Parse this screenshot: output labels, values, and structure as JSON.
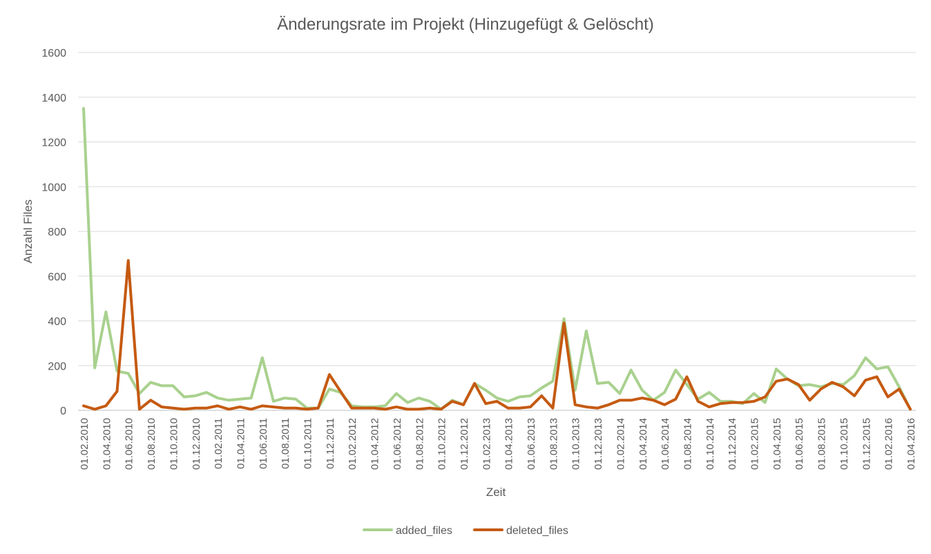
{
  "chart_data": {
    "type": "line",
    "title": "Änderungsrate im Projekt (Hinzugefügt & Gelöscht)",
    "xlabel": "Zeit",
    "ylabel": "Anzahl Files",
    "ylim": [
      0,
      1600
    ],
    "yticks": [
      "0",
      "200",
      "400",
      "600",
      "800",
      "1000",
      "1200",
      "1400",
      "1600"
    ],
    "grid": true,
    "legend_position": "bottom",
    "x": [
      "01.02.2010",
      "01.03.2010",
      "01.04.2010",
      "01.05.2010",
      "01.06.2010",
      "01.07.2010",
      "01.08.2010",
      "01.09.2010",
      "01.10.2010",
      "01.11.2010",
      "01.12.2010",
      "01.01.2011",
      "01.02.2011",
      "01.03.2011",
      "01.04.2011",
      "01.05.2011",
      "01.06.2011",
      "01.07.2011",
      "01.08.2011",
      "01.09.2011",
      "01.10.2011",
      "01.11.2011",
      "01.12.2011",
      "01.01.2012",
      "01.02.2012",
      "01.03.2012",
      "01.04.2012",
      "01.05.2012",
      "01.06.2012",
      "01.07.2012",
      "01.08.2012",
      "01.09.2012",
      "01.10.2012",
      "01.11.2012",
      "01.12.2012",
      "01.01.2013",
      "01.02.2013",
      "01.03.2013",
      "01.04.2013",
      "01.05.2013",
      "01.06.2013",
      "01.07.2013",
      "01.08.2013",
      "01.09.2013",
      "01.10.2013",
      "01.11.2013",
      "01.12.2013",
      "01.01.2014",
      "01.02.2014",
      "01.03.2014",
      "01.04.2014",
      "01.05.2014",
      "01.06.2014",
      "01.07.2014",
      "01.08.2014",
      "01.09.2014",
      "01.10.2014",
      "01.11.2014",
      "01.12.2014",
      "01.01.2015",
      "01.02.2015",
      "01.03.2015",
      "01.04.2015",
      "01.05.2015",
      "01.06.2015",
      "01.07.2015",
      "01.08.2015",
      "01.09.2015",
      "01.10.2015",
      "01.11.2015",
      "01.12.2015",
      "01.01.2016",
      "01.02.2016",
      "01.03.2016",
      "01.04.2016"
    ],
    "xtick_labels": [
      "01.02.2010",
      "01.04.2010",
      "01.06.2010",
      "01.08.2010",
      "01.10.2010",
      "01.12.2010",
      "01.02.2011",
      "01.04.2011",
      "01.06.2011",
      "01.08.2011",
      "01.10.2011",
      "01.12.2011",
      "01.02.2012",
      "01.04.2012",
      "01.06.2012",
      "01.08.2012",
      "01.10.2012",
      "01.12.2012",
      "01.02.2013",
      "01.04.2013",
      "01.06.2013",
      "01.08.2013",
      "01.10.2013",
      "01.12.2013",
      "01.02.2014",
      "01.04.2014",
      "01.06.2014",
      "01.08.2014",
      "01.10.2014",
      "01.12.2014",
      "01.02.2015",
      "01.04.2015",
      "01.06.2015",
      "01.08.2015",
      "01.10.2015",
      "01.12.2015",
      "01.02.2016",
      "01.04.2016"
    ],
    "series": [
      {
        "name": "added_files",
        "color": "#a9d18e",
        "values": [
          1350,
          190,
          440,
          175,
          165,
          75,
          125,
          110,
          110,
          60,
          65,
          80,
          55,
          45,
          50,
          55,
          235,
          40,
          55,
          50,
          10,
          10,
          95,
          80,
          20,
          15,
          15,
          20,
          75,
          35,
          55,
          40,
          5,
          45,
          25,
          120,
          90,
          55,
          40,
          60,
          65,
          100,
          130,
          410,
          90,
          355,
          120,
          125,
          75,
          180,
          90,
          45,
          80,
          180,
          115,
          50,
          80,
          40,
          40,
          30,
          75,
          35,
          185,
          140,
          110,
          115,
          105,
          120,
          115,
          155,
          235,
          185,
          195,
          105,
          5
        ]
      },
      {
        "name": "deleted_files",
        "color": "#c55a11",
        "values": [
          20,
          5,
          20,
          85,
          670,
          5,
          45,
          15,
          10,
          5,
          10,
          10,
          20,
          5,
          15,
          5,
          20,
          15,
          10,
          10,
          5,
          10,
          160,
          85,
          10,
          10,
          10,
          5,
          15,
          5,
          5,
          10,
          5,
          40,
          25,
          120,
          30,
          40,
          10,
          10,
          15,
          65,
          10,
          390,
          25,
          15,
          10,
          25,
          45,
          45,
          55,
          45,
          25,
          50,
          150,
          40,
          15,
          30,
          35,
          35,
          40,
          60,
          130,
          140,
          115,
          45,
          95,
          125,
          105,
          65,
          135,
          150,
          60,
          95,
          5
        ]
      }
    ]
  }
}
